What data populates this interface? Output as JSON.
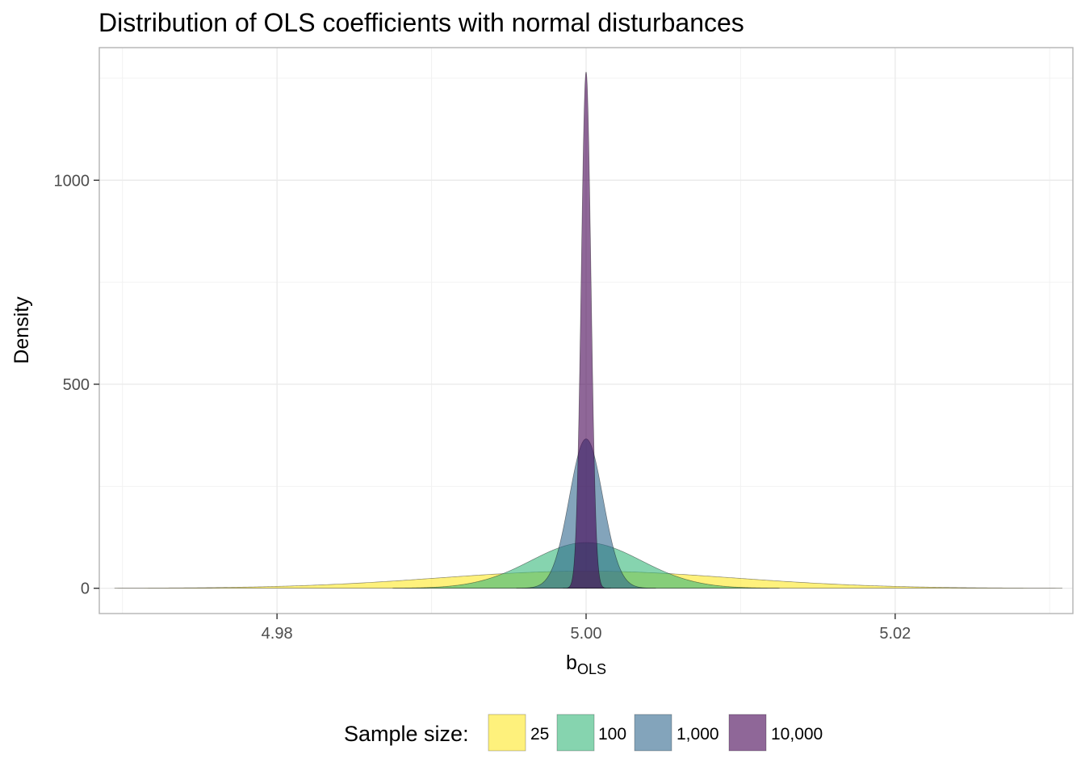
{
  "chart_data": {
    "type": "area",
    "title": "Distribution of OLS coefficients with normal disturbances",
    "xlabel": "b",
    "xlabel_subscript": "OLS",
    "ylabel": "Density",
    "xlim": [
      4.9685,
      5.0315
    ],
    "ylim": [
      -62,
      1325
    ],
    "x_ticks": [
      4.98,
      5.0,
      5.02
    ],
    "x_tick_labels": [
      "4.98",
      "5.00",
      "5.02"
    ],
    "y_ticks": [
      0,
      500,
      1000
    ],
    "y_tick_labels": [
      "0",
      "500",
      "1000"
    ],
    "grid": true,
    "legend": {
      "title": "Sample size:",
      "position": "bottom"
    },
    "series": [
      {
        "name": "25",
        "color": "#FDE725",
        "mean": 5.0,
        "peak_density": 42,
        "x_range": [
          4.9695,
          5.0308
        ]
      },
      {
        "name": "100",
        "color": "#35B779",
        "mean": 5.0,
        "peak_density": 112,
        "x_range": [
          4.9875,
          5.0125
        ]
      },
      {
        "name": "1,000",
        "color": "#31688E",
        "mean": 5.0,
        "peak_density": 366,
        "x_range": [
          4.9955,
          5.0045
        ]
      },
      {
        "name": "10,000",
        "color": "#440154",
        "mean": 5.0,
        "peak_density": 1265,
        "x_range": [
          4.9985,
          5.0016
        ]
      }
    ]
  }
}
